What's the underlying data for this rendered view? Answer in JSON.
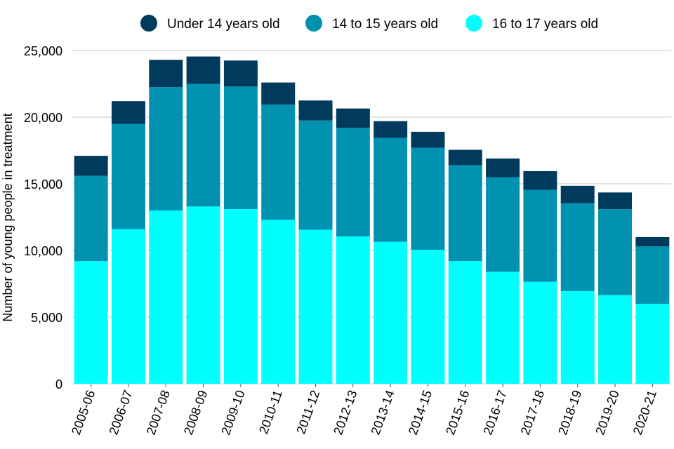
{
  "chart_data": {
    "type": "bar",
    "stacked": true,
    "ylabel": "Number of young people in treatment",
    "xlabel": "",
    "ylim": [
      0,
      25000
    ],
    "yticks": [
      0,
      5000,
      10000,
      15000,
      20000,
      25000
    ],
    "ytick_labels": [
      "0",
      "5,000",
      "10,000",
      "15,000",
      "20,000",
      "25,000"
    ],
    "grid": "horizontal",
    "legend_position": "top",
    "categories": [
      "2005-06",
      "2006-07",
      "2007-08",
      "2008-09",
      "2009-10",
      "2010-11",
      "2011-12",
      "2012-13",
      "2013-14",
      "2014-15",
      "2015-16",
      "2016-17",
      "2017-18",
      "2018-19",
      "2019-20",
      "2020-21"
    ],
    "series": [
      {
        "name": "16 to 17 years old",
        "color": "#00ffff",
        "values": [
          9200,
          11600,
          13000,
          13300,
          13100,
          12300,
          11550,
          11050,
          10650,
          10050,
          9200,
          8400,
          7650,
          6950,
          6650,
          6000
        ]
      },
      {
        "name": "14 to 15 years old",
        "color": "#0092b0",
        "values": [
          6400,
          7900,
          9250,
          9200,
          9200,
          8650,
          8200,
          8150,
          7800,
          7650,
          7200,
          7100,
          6900,
          6600,
          6450,
          4300
        ]
      },
      {
        "name": "Under 14 years old",
        "color": "#003a5d",
        "values": [
          1500,
          1700,
          2050,
          2050,
          1950,
          1650,
          1500,
          1450,
          1250,
          1200,
          1150,
          1400,
          1400,
          1300,
          1250,
          700
        ]
      }
    ],
    "legend_order": [
      "Under 14 years old",
      "14 to 15 years old",
      "16 to 17 years old"
    ]
  }
}
